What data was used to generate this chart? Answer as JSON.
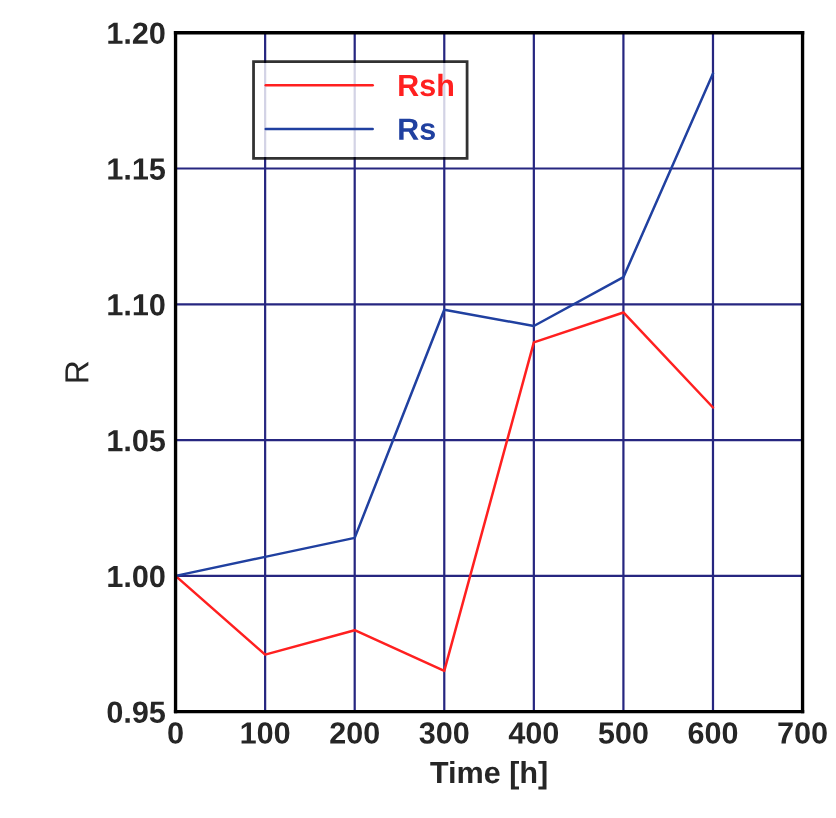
{
  "chart_data": {
    "type": "line",
    "xlabel": "Time [h]",
    "ylabel": "R",
    "x": [
      0,
      100,
      200,
      300,
      400,
      500,
      600
    ],
    "series": [
      {
        "name": "Rsh",
        "color": "#ff2020",
        "values": [
          1.0,
          0.971,
          0.98,
          0.965,
          1.086,
          1.097,
          1.062
        ]
      },
      {
        "name": "Rs",
        "color": "#2040a0",
        "values": [
          1.0,
          1.007,
          1.014,
          1.098,
          1.092,
          1.11,
          1.185
        ]
      }
    ],
    "xlim": [
      0,
      700
    ],
    "xticks": [
      0,
      100,
      200,
      300,
      400,
      500,
      600,
      700
    ],
    "ylim": [
      0.95,
      1.2
    ],
    "yticks": [
      {
        "value": 0.95,
        "label": "0.95"
      },
      {
        "value": 1.0,
        "label": "1.00"
      },
      {
        "value": 1.05,
        "label": "1.05"
      },
      {
        "value": 1.1,
        "label": "1.10"
      },
      {
        "value": 1.15,
        "label": "1.15"
      },
      {
        "value": 1.2,
        "label": "1.20"
      }
    ],
    "grid": true,
    "legend": "top left"
  }
}
